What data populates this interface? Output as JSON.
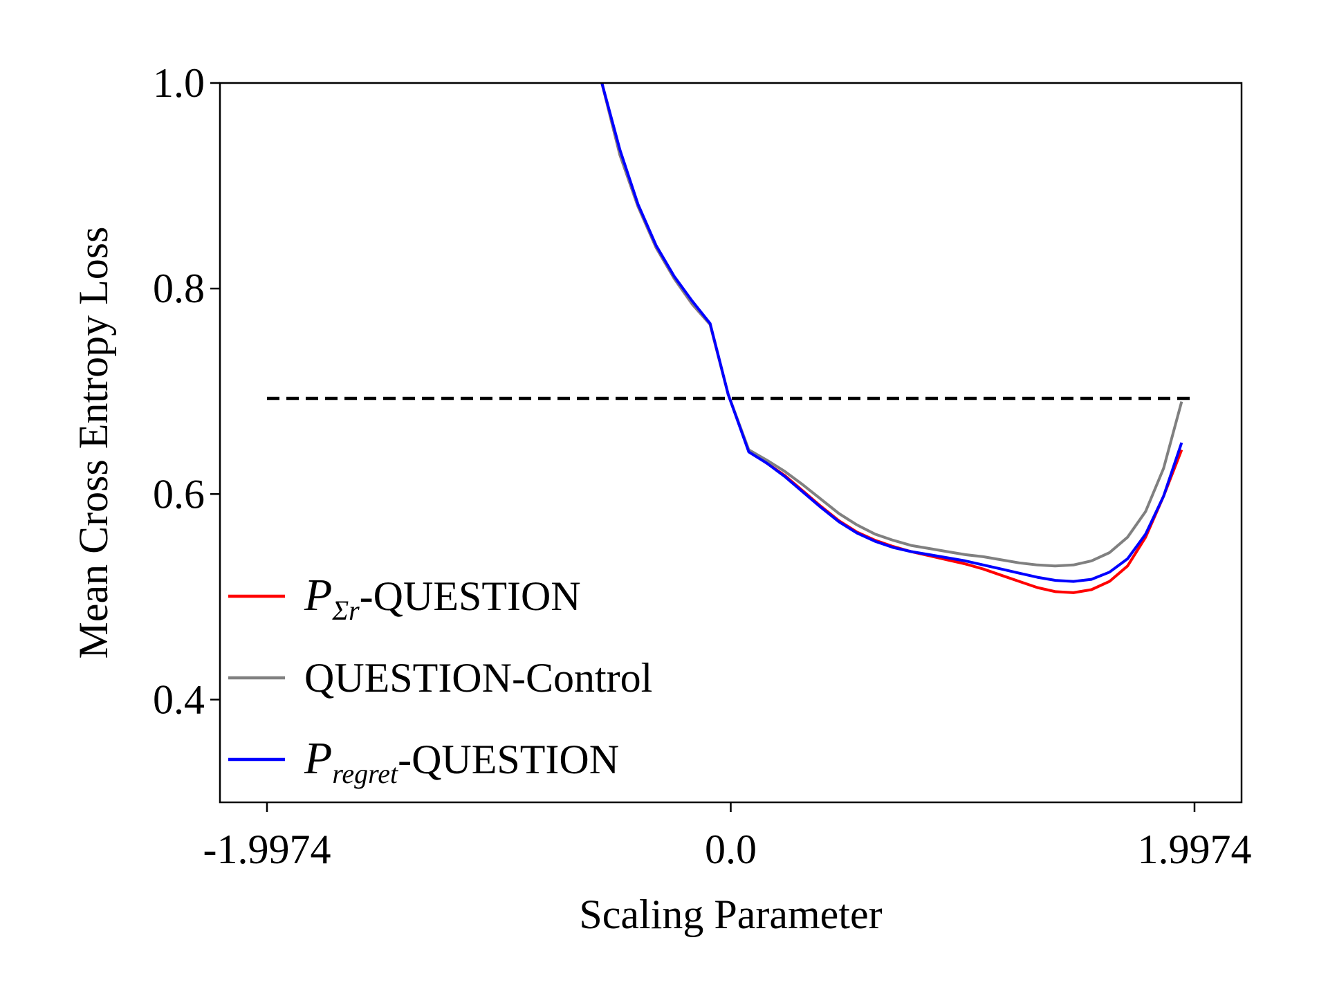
{
  "chart_data": {
    "type": "line",
    "title": "",
    "xlabel": "Scaling Parameter",
    "ylabel": "Mean Cross Entropy Loss",
    "xlim": [
      -2.2,
      2.2
    ],
    "ylim": [
      0.3,
      1.0
    ],
    "xticks": [
      -1.9974,
      0.0,
      1.9974
    ],
    "xtick_labels": [
      "-1.9974",
      "0.0",
      "1.9974"
    ],
    "yticks": [
      0.4,
      0.6,
      0.8,
      1.0
    ],
    "ytick_labels": [
      "0.4",
      "0.6",
      "0.8",
      "1.0"
    ],
    "grid": false,
    "legend_placement": "lower-left",
    "reference_line": {
      "y": 0.6931,
      "x_range": [
        -1.9974,
        1.9974
      ],
      "style": "dashed",
      "color": "#000000"
    },
    "series": [
      {
        "name": "-QUESTION",
        "legend_math_base": "P",
        "legend_math_sub": "Σr",
        "color": "#ff0000",
        "x": [
          -0.5549,
          -0.4772,
          -0.3995,
          -0.3218,
          -0.2441,
          -0.1664,
          -0.0888,
          -0.0111,
          0.0777,
          0.1554,
          0.233,
          0.3107,
          0.3884,
          0.4661,
          0.5438,
          0.6215,
          0.6991,
          0.7768,
          0.8545,
          0.9322,
          1.0099,
          1.0875,
          1.1652,
          1.2429,
          1.3206,
          1.3983,
          1.476,
          1.5536,
          1.6313,
          1.709,
          1.7867,
          1.8644,
          1.9421
        ],
        "y": [
          1.0,
          0.93,
          0.88,
          0.84,
          0.81,
          0.785,
          0.765,
          0.697,
          0.642,
          0.63,
          0.618,
          0.603,
          0.588,
          0.574,
          0.563,
          0.555,
          0.549,
          0.544,
          0.54,
          0.536,
          0.532,
          0.527,
          0.521,
          0.515,
          0.509,
          0.505,
          0.504,
          0.507,
          0.515,
          0.53,
          0.558,
          0.598,
          0.643
        ]
      },
      {
        "name": "QUESTION-Control",
        "color": "#808080",
        "x": [
          -0.5549,
          -0.4772,
          -0.3995,
          -0.3218,
          -0.2441,
          -0.1664,
          -0.0888,
          -0.0111,
          0.0777,
          0.1554,
          0.233,
          0.3107,
          0.3884,
          0.4661,
          0.5438,
          0.6215,
          0.6991,
          0.7768,
          0.8545,
          0.9322,
          1.0099,
          1.0875,
          1.1652,
          1.2429,
          1.3206,
          1.3983,
          1.476,
          1.5536,
          1.6313,
          1.709,
          1.7867,
          1.8644,
          1.9421
        ],
        "y": [
          1.0,
          0.93,
          0.88,
          0.84,
          0.81,
          0.785,
          0.765,
          0.697,
          0.643,
          0.633,
          0.622,
          0.609,
          0.595,
          0.581,
          0.57,
          0.561,
          0.555,
          0.55,
          0.547,
          0.544,
          0.541,
          0.539,
          0.536,
          0.533,
          0.531,
          0.53,
          0.531,
          0.535,
          0.543,
          0.558,
          0.583,
          0.625,
          0.69
        ]
      },
      {
        "name": "-QUESTION",
        "legend_math_base": "P",
        "legend_math_sub": "regret",
        "color": "#0000ff",
        "x": [
          -0.5549,
          -0.4772,
          -0.3995,
          -0.3218,
          -0.2441,
          -0.1664,
          -0.0888,
          -0.0111,
          0.0777,
          0.1554,
          0.233,
          0.3107,
          0.3884,
          0.4661,
          0.5438,
          0.6215,
          0.6991,
          0.7768,
          0.8545,
          0.9322,
          1.0099,
          1.0875,
          1.1652,
          1.2429,
          1.3206,
          1.3983,
          1.476,
          1.5536,
          1.6313,
          1.709,
          1.7867,
          1.8644,
          1.9421
        ],
        "y": [
          1.0,
          0.935,
          0.882,
          0.842,
          0.812,
          0.788,
          0.766,
          0.697,
          0.641,
          0.63,
          0.617,
          0.602,
          0.587,
          0.573,
          0.562,
          0.554,
          0.548,
          0.544,
          0.541,
          0.538,
          0.535,
          0.531,
          0.527,
          0.523,
          0.519,
          0.516,
          0.515,
          0.517,
          0.524,
          0.537,
          0.561,
          0.598,
          0.65
        ]
      }
    ]
  }
}
